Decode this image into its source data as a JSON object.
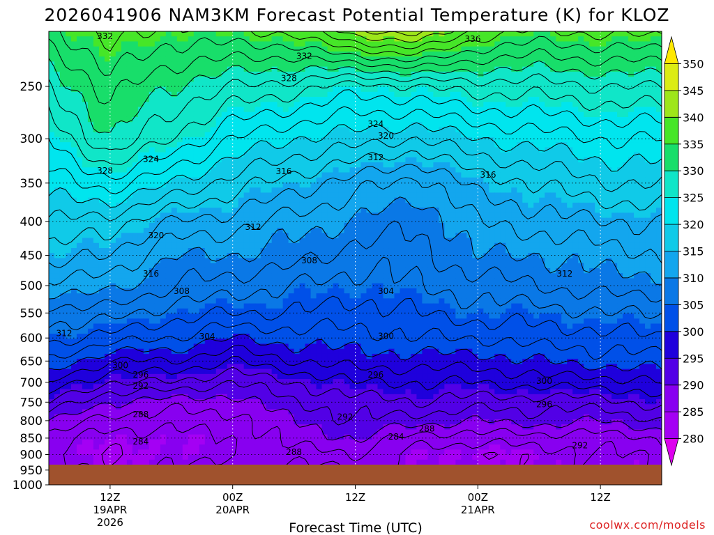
{
  "chart_data": {
    "type": "heatmap",
    "title": "2026041906 NAM3KM Forecast Potential Temperature (K) for KLOZ",
    "xlabel": "Forecast Time (UTC)",
    "ylabel": "",
    "y_ticks": [
      250,
      300,
      350,
      400,
      450,
      500,
      550,
      600,
      650,
      700,
      750,
      800,
      850,
      900,
      950,
      1000
    ],
    "y_range_hpa": [
      1000,
      200
    ],
    "x_ticks": [
      {
        "hour": 12,
        "label": "12Z",
        "sub1": "19APR",
        "sub2": "2026"
      },
      {
        "hour": 24,
        "label": "00Z",
        "sub1": "20APR",
        "sub2": ""
      },
      {
        "hour": 36,
        "label": "12Z",
        "sub1": "",
        "sub2": ""
      },
      {
        "hour": 48,
        "label": "00Z",
        "sub1": "21APR",
        "sub2": ""
      },
      {
        "hour": 60,
        "label": "12Z",
        "sub1": "",
        "sub2": ""
      }
    ],
    "x_range_hours": [
      6,
      66
    ],
    "colorbar": {
      "ticks": [
        280,
        285,
        290,
        295,
        300,
        305,
        310,
        315,
        320,
        325,
        330,
        335,
        340,
        345,
        350
      ],
      "range": [
        275,
        355
      ],
      "colors": [
        {
          "min": 275,
          "color": "#dd00ee"
        },
        {
          "min": 280,
          "color": "#a400f4"
        },
        {
          "min": 285,
          "color": "#8800f0"
        },
        {
          "min": 290,
          "color": "#5200e6"
        },
        {
          "min": 295,
          "color": "#1f00dc"
        },
        {
          "min": 300,
          "color": "#0050e8"
        },
        {
          "min": 305,
          "color": "#0a78e6"
        },
        {
          "min": 310,
          "color": "#13a6ee"
        },
        {
          "min": 315,
          "color": "#10cae8"
        },
        {
          "min": 320,
          "color": "#00e5ee"
        },
        {
          "min": 325,
          "color": "#10e6c8"
        },
        {
          "min": 330,
          "color": "#18de6a"
        },
        {
          "min": 335,
          "color": "#46e628"
        },
        {
          "min": 340,
          "color": "#9ee61a"
        },
        {
          "min": 345,
          "color": "#dcec14"
        },
        {
          "min": 350,
          "color": "#ffe800"
        }
      ]
    },
    "hours": [
      6,
      9,
      12,
      15,
      18,
      21,
      24,
      27,
      30,
      33,
      36,
      39,
      42,
      45,
      48,
      51,
      54,
      57,
      60,
      63,
      66
    ],
    "profiles": {
      "levels": [
        1000,
        950,
        900,
        850,
        800,
        750,
        700,
        650,
        600,
        550,
        500,
        450,
        400,
        350,
        300,
        250,
        200
      ],
      "h6": [
        293,
        287,
        286,
        287,
        290,
        294,
        298,
        302,
        305,
        307,
        311,
        315,
        318,
        321,
        324,
        328,
        334
      ],
      "h12": [
        287,
        285,
        284,
        285,
        287,
        290,
        294,
        298,
        303,
        307,
        311,
        314,
        317,
        323,
        330,
        333,
        338
      ],
      "h18": [
        292,
        286,
        285,
        285,
        287,
        289,
        294,
        298,
        302,
        305,
        308,
        310,
        314,
        320,
        326,
        330,
        336
      ],
      "h24": [
        292,
        288,
        286,
        286,
        287,
        289,
        292,
        296,
        300,
        304,
        307,
        310,
        313,
        317,
        322,
        328,
        337
      ],
      "h30": [
        285,
        285,
        287,
        289,
        290,
        292,
        294,
        298,
        301,
        304,
        306,
        309,
        311,
        315,
        320,
        327,
        338
      ],
      "h36": [
        285,
        286,
        288,
        290,
        292,
        293,
        296,
        299,
        301,
        303,
        305,
        307,
        310,
        313,
        319,
        325,
        344
      ],
      "h42": [
        287,
        286,
        285,
        287,
        291,
        294,
        296,
        299,
        302,
        304,
        306,
        307,
        308,
        311,
        318,
        326,
        346
      ],
      "h48": [
        286,
        285,
        284,
        287,
        290,
        293,
        296,
        299,
        302,
        305,
        307,
        310,
        312,
        315,
        320,
        327,
        339
      ],
      "h54": [
        286,
        285,
        285,
        287,
        291,
        293,
        297,
        300,
        303,
        305,
        308,
        310,
        313,
        316,
        321,
        327,
        337
      ],
      "h60": [
        287,
        285,
        286,
        287,
        290,
        293,
        297,
        301,
        303,
        306,
        309,
        311,
        314,
        318,
        322,
        328,
        338
      ],
      "h66": [
        288,
        286,
        286,
        288,
        292,
        295,
        298,
        301,
        304,
        306,
        309,
        312,
        314,
        318,
        322,
        328,
        338
      ]
    },
    "surface_color": "#a0522d",
    "contour_interval": 2,
    "grid": true
  },
  "labels": {
    "contours": [
      {
        "text": "332",
        "hour": 11.5,
        "p": 210
      },
      {
        "text": "328",
        "hour": 11.5,
        "p": 335
      },
      {
        "text": "324",
        "hour": 16,
        "p": 322
      },
      {
        "text": "320",
        "hour": 16.5,
        "p": 420
      },
      {
        "text": "316",
        "hour": 16,
        "p": 480
      },
      {
        "text": "312",
        "hour": 7.5,
        "p": 590
      },
      {
        "text": "308",
        "hour": 19,
        "p": 510
      },
      {
        "text": "304",
        "hour": 21.5,
        "p": 597
      },
      {
        "text": "300",
        "hour": 13,
        "p": 660
      },
      {
        "text": "296",
        "hour": 15,
        "p": 682
      },
      {
        "text": "292",
        "hour": 15,
        "p": 709
      },
      {
        "text": "288",
        "hour": 15,
        "p": 783
      },
      {
        "text": "284",
        "hour": 15,
        "p": 860
      },
      {
        "text": "332",
        "hour": 31,
        "p": 225
      },
      {
        "text": "328",
        "hour": 29.5,
        "p": 243
      },
      {
        "text": "324",
        "hour": 38,
        "p": 285
      },
      {
        "text": "320",
        "hour": 39,
        "p": 297
      },
      {
        "text": "316",
        "hour": 29,
        "p": 336
      },
      {
        "text": "312",
        "hour": 26,
        "p": 408
      },
      {
        "text": "312",
        "hour": 38,
        "p": 320
      },
      {
        "text": "308",
        "hour": 31.5,
        "p": 458
      },
      {
        "text": "304",
        "hour": 39,
        "p": 510
      },
      {
        "text": "300",
        "hour": 39,
        "p": 596
      },
      {
        "text": "296",
        "hour": 38,
        "p": 682
      },
      {
        "text": "292",
        "hour": 35,
        "p": 790
      },
      {
        "text": "288",
        "hour": 30,
        "p": 892
      },
      {
        "text": "284",
        "hour": 40,
        "p": 846
      },
      {
        "text": "288",
        "hour": 43,
        "p": 823
      },
      {
        "text": "336",
        "hour": 47.5,
        "p": 212
      },
      {
        "text": "316",
        "hour": 49,
        "p": 340
      },
      {
        "text": "312",
        "hour": 56.5,
        "p": 480
      },
      {
        "text": "300",
        "hour": 54.5,
        "p": 697
      },
      {
        "text": "296",
        "hour": 54.5,
        "p": 756
      },
      {
        "text": "292",
        "hour": 58,
        "p": 872
      }
    ]
  },
  "watermark": "coolwx.com/models"
}
